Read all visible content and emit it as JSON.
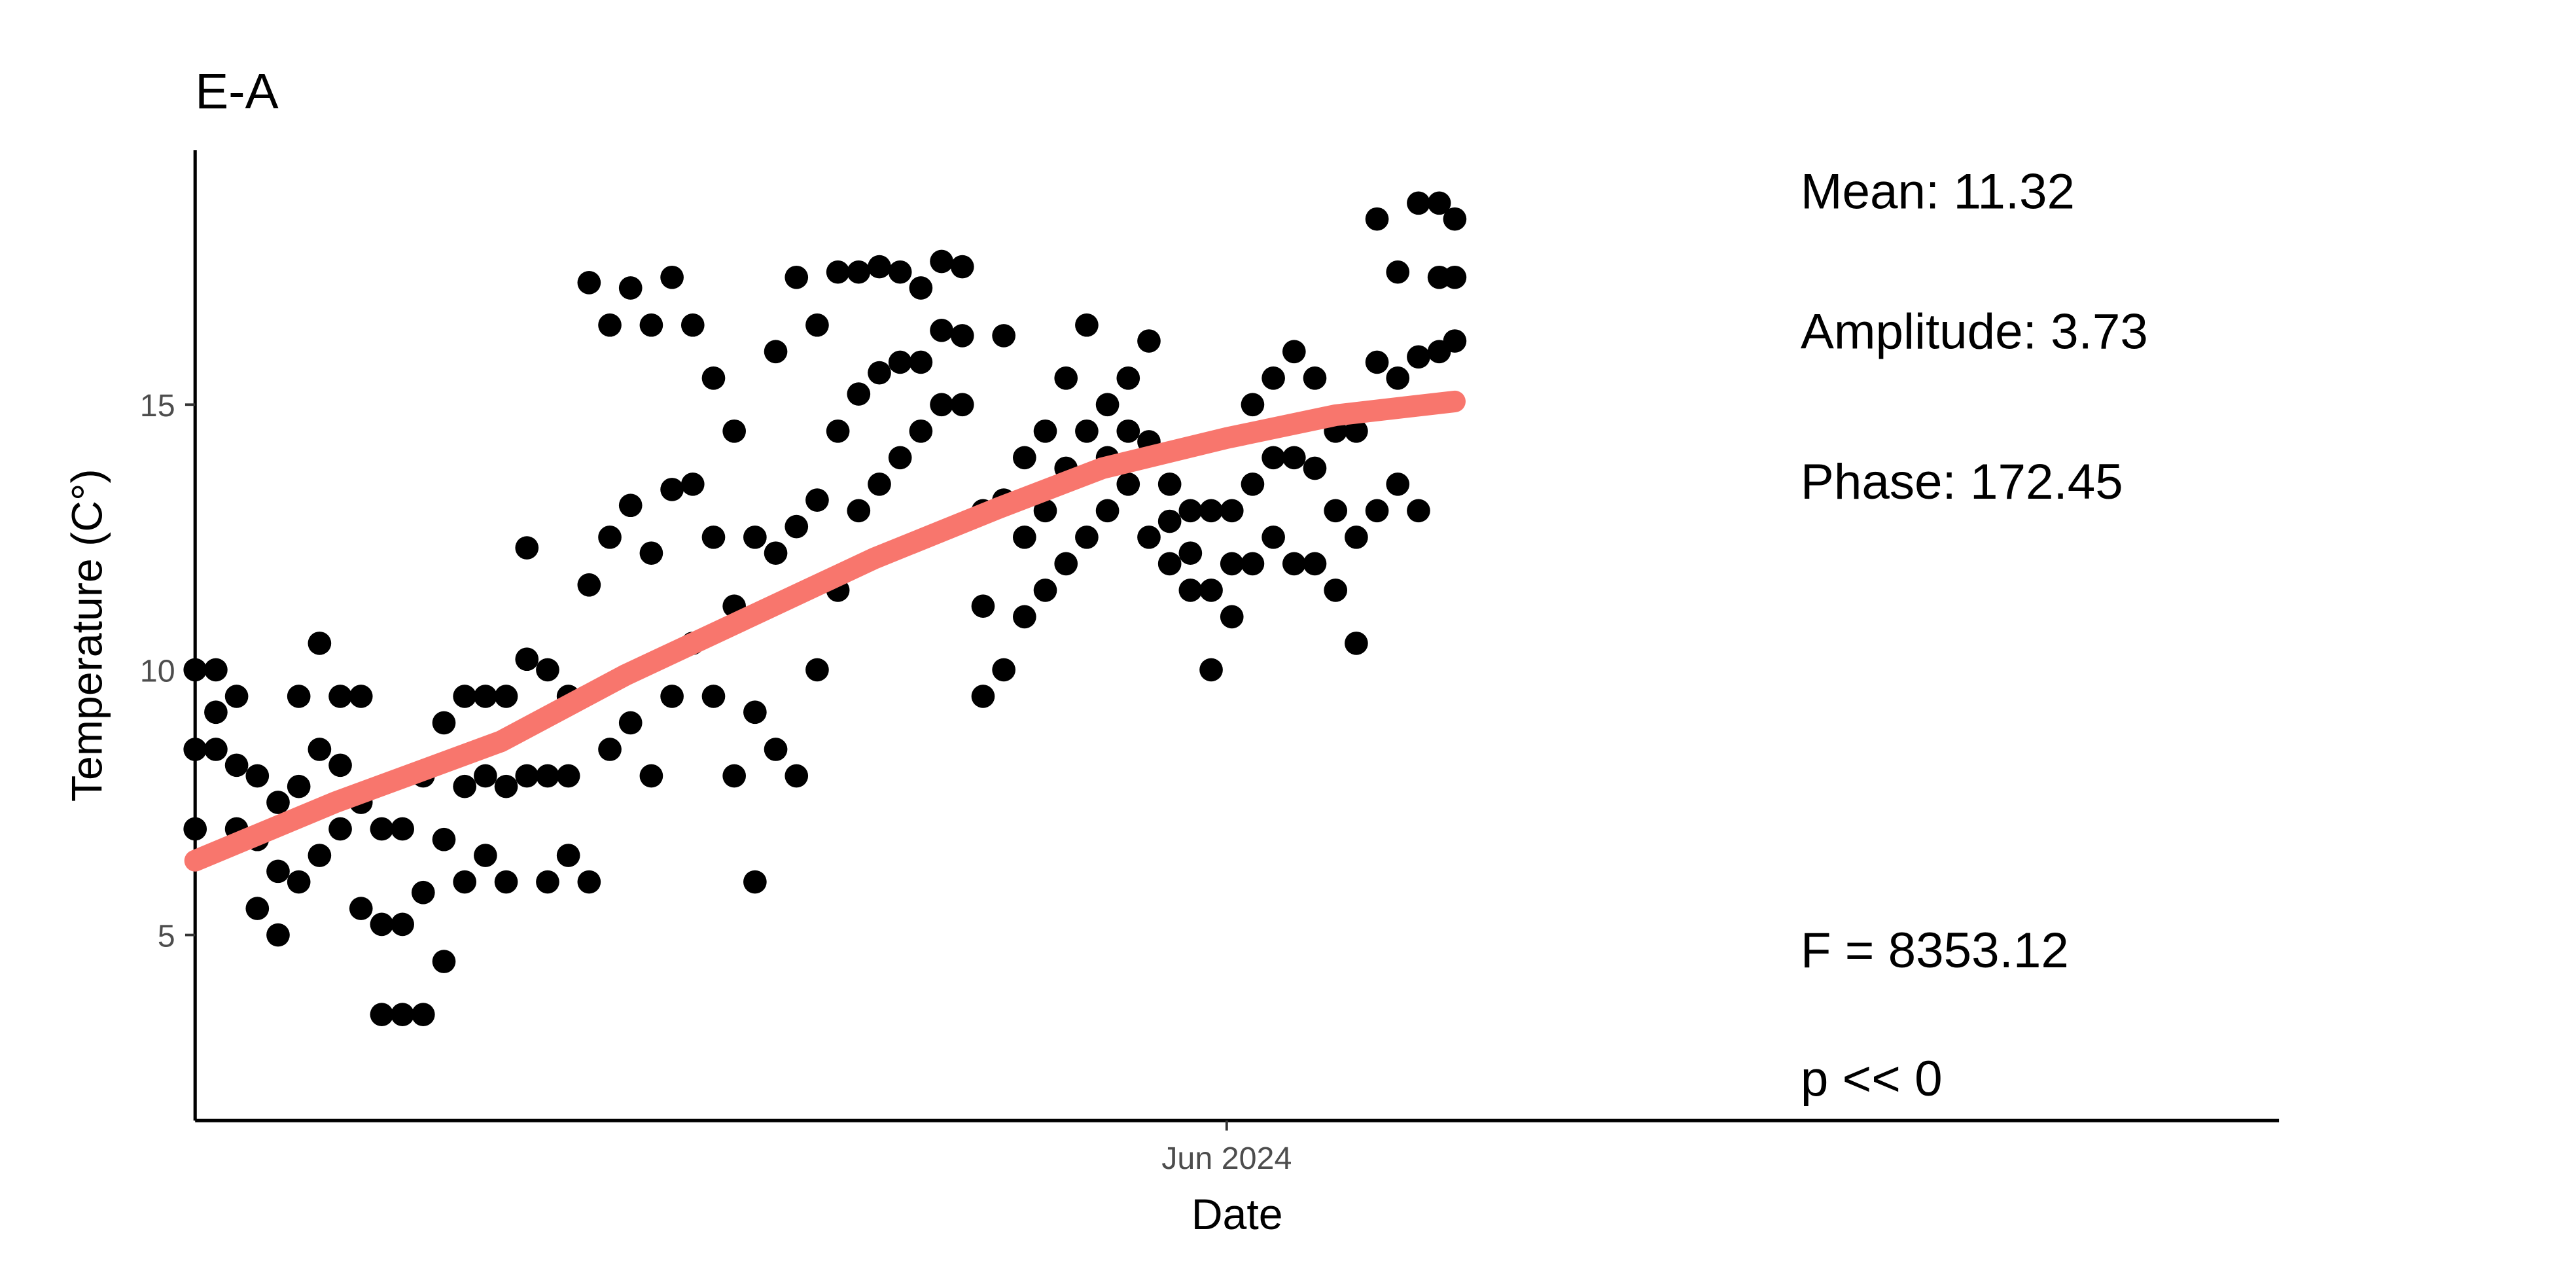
{
  "chart_data": {
    "type": "scatter",
    "title": "E-A",
    "x_label": "Date",
    "y_label": "Temperature (C°)",
    "x": [
      19676,
      19676,
      19676,
      19680,
      19680,
      19680,
      19684,
      19684,
      19684,
      19688,
      19688,
      19688,
      19692,
      19692,
      19692,
      19696,
      19696,
      19696,
      19700,
      19700,
      19700,
      19704,
      19704,
      19704,
      19708,
      19708,
      19708,
      19712,
      19712,
      19712,
      19716,
      19716,
      19716,
      19720,
      19720,
      19720,
      19724,
      19724,
      19724,
      19728,
      19728,
      19728,
      19732,
      19732,
      19732,
      19736,
      19736,
      19736,
      19740,
      19740,
      19740,
      19744,
      19744,
      19744,
      19748,
      19748,
      19748,
      19752,
      19752,
      19752,
      19756,
      19756,
      19756,
      19760,
      19760,
      19760,
      19764,
      19764,
      19764,
      19768,
      19768,
      19768,
      19772,
      19772,
      19772,
      19776,
      19776,
      19776,
      19780,
      19780,
      19780,
      19784,
      19784,
      19784,
      19788,
      19788,
      19788,
      19792,
      19792,
      19792,
      19796,
      19796,
      19796,
      19800,
      19800,
      19800,
      19804,
      19804,
      19804,
      19808,
      19808,
      19808,
      19812,
      19812,
      19812,
      19816,
      19816,
      19816,
      19820,
      19820,
      19820,
      19824,
      19824,
      19824,
      19828,
      19828,
      19828,
      19832,
      19832,
      19832,
      19836,
      19836,
      19836,
      19840,
      19840,
      19840,
      19844,
      19844,
      19844,
      19848,
      19848,
      19848,
      19852,
      19852,
      19852,
      19856,
      19856,
      19856,
      19860,
      19860,
      19860,
      19864,
      19864,
      19864,
      19868,
      19868,
      19868,
      19872,
      19872,
      19872,
      19876,
      19876,
      19876,
      19880,
      19880,
      19880,
      19884,
      19884,
      19884,
      19888,
      19888,
      19888,
      19892,
      19892,
      19892,
      19896,
      19896,
      19896,
      19900,
      19900,
      19900,
      19904,
      19904,
      19904,
      19908,
      19908,
      19908,
      19912,
      19912,
      19912,
      19916,
      19916,
      19916,
      19919,
      19919,
      19919
    ],
    "values": [
      10,
      8.5,
      7,
      10,
      9.2,
      8.5,
      9.5,
      8.2,
      7,
      8,
      6.8,
      5.5,
      7.5,
      6.2,
      5,
      9.5,
      7.8,
      6,
      10.5,
      8.5,
      6.5,
      9.5,
      8.2,
      7,
      9.5,
      7.5,
      5.5,
      7,
      5.2,
      3.5,
      7,
      5.2,
      3.5,
      8,
      5.8,
      3.5,
      9,
      6.8,
      4.5,
      9.5,
      7.8,
      6,
      9.5,
      8,
      6.5,
      9.5,
      7.8,
      6,
      12.3,
      10.2,
      8,
      10,
      8,
      6,
      9.5,
      8,
      6.5,
      17.3,
      11.6,
      6,
      16.5,
      12.5,
      8.5,
      17.2,
      13.1,
      9,
      16.5,
      12.2,
      8,
      17.4,
      13.4,
      9.5,
      16.5,
      13.5,
      10.5,
      15.5,
      12.5,
      9.5,
      14.5,
      11.2,
      8,
      12.5,
      9.2,
      6,
      16,
      12.2,
      8.5,
      17.4,
      12.7,
      8,
      16.5,
      13.2,
      10,
      17.5,
      14.5,
      11.5,
      17.5,
      15.2,
      13,
      17.6,
      15.6,
      13.5,
      17.5,
      15.8,
      14,
      17.2,
      15.8,
      14.5,
      17.7,
      16.4,
      15,
      17.6,
      16.3,
      15,
      13,
      11.2,
      9.5,
      16.3,
      13.2,
      10,
      14,
      12.5,
      11,
      14.5,
      13,
      11.5,
      15.5,
      13.8,
      12,
      16.5,
      14.5,
      12.5,
      15,
      14,
      13,
      15.5,
      14.5,
      13.5,
      16.2,
      14.3,
      12.5,
      13.5,
      12.8,
      12,
      13,
      12.2,
      11.5,
      13,
      11.5,
      10,
      13,
      12,
      11,
      15,
      13.5,
      12,
      15.5,
      14,
      12.5,
      16,
      14,
      12,
      15.5,
      13.8,
      12,
      14.5,
      13,
      11.5,
      14.5,
      12.5,
      10.5,
      18.5,
      15.8,
      13,
      17.5,
      15.5,
      13.5,
      18.8,
      15.9,
      13,
      18.8,
      17.4,
      16,
      18.5,
      17.4,
      16.2
    ],
    "color": "#000000",
    "fit": {
      "x": [
        19676,
        19703,
        19735,
        19759,
        19783,
        19807,
        19831,
        19851,
        19875,
        19896,
        19919
      ],
      "values": [
        6.4,
        7.5,
        8.65,
        9.9,
        11.0,
        12.1,
        13.05,
        13.8,
        14.37,
        14.8,
        15.06
      ],
      "color": "#f8766d"
    },
    "xlim": [
      19676,
      20078
    ],
    "xticks": [
      {
        "value": 19875,
        "label": "Jun 2024"
      }
    ],
    "ylim": [
      1.5,
      19.8
    ],
    "yticks": [
      5,
      10,
      15
    ],
    "grid": false,
    "annotations": [
      "Mean: 11.32",
      "Amplitude: 3.73",
      "Phase: 172.45",
      "F =  8353.12",
      "p <<  0"
    ]
  }
}
